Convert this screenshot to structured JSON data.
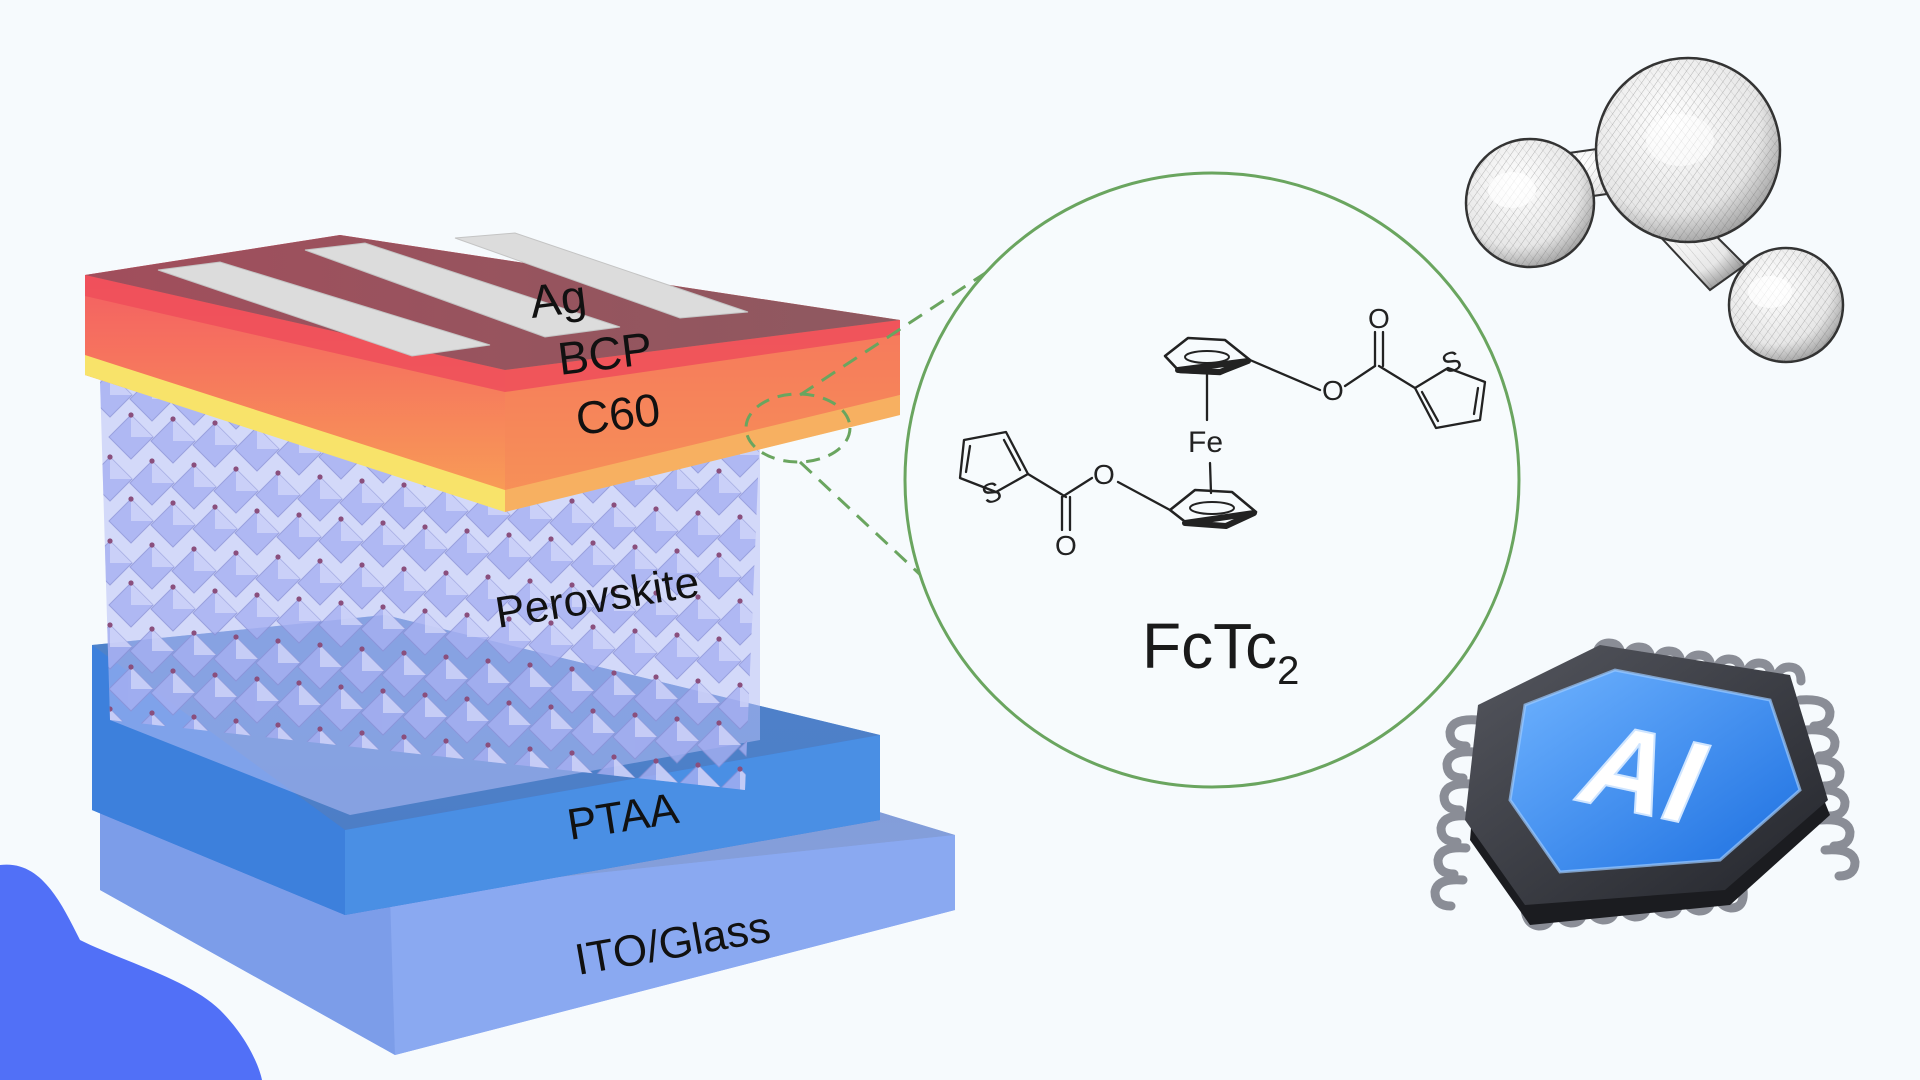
{
  "device": {
    "layers": [
      {
        "key": "ag",
        "label": "Ag"
      },
      {
        "key": "bcp",
        "label": "BCP"
      },
      {
        "key": "c60",
        "label": "C60"
      },
      {
        "key": "perovskite",
        "label": "Perovskite"
      },
      {
        "key": "ptaa",
        "label": "PTAA"
      },
      {
        "key": "ito",
        "label": "ITO/Glass"
      }
    ]
  },
  "molecule": {
    "name_main": "FcTc",
    "name_sub": "2",
    "atoms": {
      "iron": "Fe",
      "oxygen": "O",
      "sulfur": "S"
    }
  },
  "chip": {
    "label": "AI"
  },
  "colors": {
    "background": "#f6fafd",
    "accent_blob": "#5170f7",
    "zoom_circle": "#6aa55f",
    "ptaa": "#4a8fe4",
    "ito": "#7fa2ee",
    "bcp": "#f26060",
    "c60": "#f8e36a",
    "ag_bars": "#dcdcdc",
    "perovskite": "#a7b0f2",
    "chip_body": "#3a3c44",
    "chip_face": "#3d8ef0"
  },
  "icons": [
    "molecule-sketch-icon",
    "ai-chip-icon"
  ]
}
